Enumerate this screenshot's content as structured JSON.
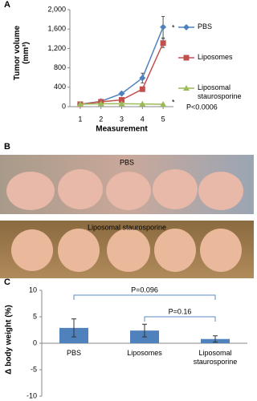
{
  "chart_data": [
    {
      "type": "line",
      "panel_label": "A",
      "y_label": "Tumor volume (mm³)",
      "x_label": "Measurement",
      "x": [
        1,
        2,
        3,
        4,
        5
      ],
      "xlim": [
        0.5,
        5.5
      ],
      "xticks": [
        1,
        2,
        3,
        4,
        5
      ],
      "ylim": [
        0,
        2000
      ],
      "yticks": [
        0,
        400,
        800,
        {
          "value": 1200,
          "label": "1,200"
        },
        {
          "value": 1600,
          "label": "1,600"
        },
        {
          "value": 2000,
          "label": "2,000"
        }
      ],
      "series": [
        {
          "name": "PBS",
          "color": "#4f81bd",
          "marker": "diamond",
          "values": [
            50,
            110,
            270,
            590,
            1640
          ],
          "errors": [
            5,
            10,
            20,
            100,
            220
          ]
        },
        {
          "name": "Liposomes",
          "color": "#c0504d",
          "marker": "square",
          "values": [
            50,
            100,
            140,
            360,
            1310
          ],
          "errors": [
            5,
            10,
            20,
            40,
            90
          ]
        },
        {
          "name": "Liposomal staurosporine",
          "color": "#9bbb59",
          "marker": "triangle",
          "values": [
            50,
            60,
            60,
            55,
            50
          ],
          "errors": [
            5,
            5,
            8,
            8,
            8
          ]
        }
      ],
      "annotations": [
        "*",
        "*",
        "P<0.0006"
      ]
    },
    {
      "type": "bar",
      "panel_label": "C",
      "y_label": "Δ body weight (%)",
      "categories": [
        "PBS",
        "Liposomes",
        "Liposomal staurosporine"
      ],
      "values": [
        2.9,
        2.4,
        0.8
      ],
      "errors": [
        1.7,
        1.2,
        0.6
      ],
      "color": "#4f81bd",
      "ylim": [
        -10,
        10
      ],
      "yticks": [
        -10,
        -5,
        0,
        5,
        10
      ],
      "annotations": [
        "P=0.096",
        "P=0.16"
      ]
    }
  ],
  "photos": {
    "panel_label": "B",
    "captions": [
      "PBS",
      "Liposomal staurosporine"
    ]
  }
}
